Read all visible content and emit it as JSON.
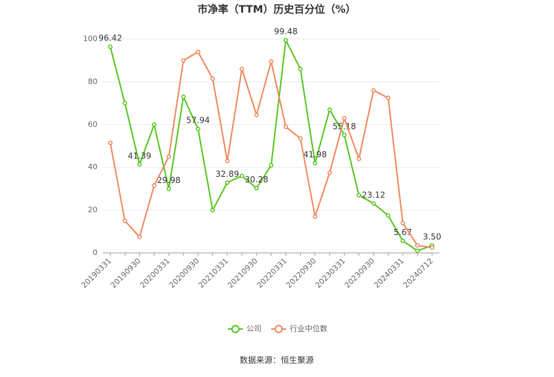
{
  "chart_data": {
    "type": "line",
    "title": "市净率（TTM）历史百分位（%）",
    "categories": [
      "20190331",
      null,
      "20190930",
      null,
      "20200331",
      null,
      "20200930",
      null,
      "20210331",
      null,
      "20210930",
      null,
      "20220331",
      null,
      "20220930",
      null,
      "20230331",
      null,
      "20230930",
      null,
      "20240331",
      null,
      "20240712"
    ],
    "series": [
      {
        "name": "公司",
        "color": "#52c41a",
        "values": [
          96.42,
          70,
          41.39,
          60,
          29.98,
          73,
          57.94,
          20,
          32.89,
          36,
          30.28,
          41,
          99.48,
          86,
          41.98,
          67,
          55.18,
          27,
          23.12,
          17.5,
          5.67,
          1,
          3.5
        ],
        "value_labels": [
          "96.42",
          null,
          "41.39",
          null,
          "29.98",
          null,
          "57.94",
          null,
          "32.89",
          null,
          "30.28",
          null,
          "99.48",
          null,
          "41.98",
          null,
          "55.18",
          null,
          "23.12",
          null,
          "5.67",
          null,
          "3.50"
        ]
      },
      {
        "name": "行业中位数",
        "color": "#f0855a",
        "values": [
          51.5,
          15,
          7.5,
          31.5,
          45,
          90,
          94,
          81.5,
          43,
          86,
          64.5,
          89.5,
          59,
          53.5,
          17,
          37.5,
          63,
          44,
          76,
          72.5,
          14,
          3.5,
          2.5
        ]
      }
    ],
    "ylim": [
      0,
      100
    ],
    "yticks": [
      0,
      20,
      40,
      60,
      80,
      100
    ],
    "grid": true,
    "source": "数据来源：恒生聚源"
  }
}
